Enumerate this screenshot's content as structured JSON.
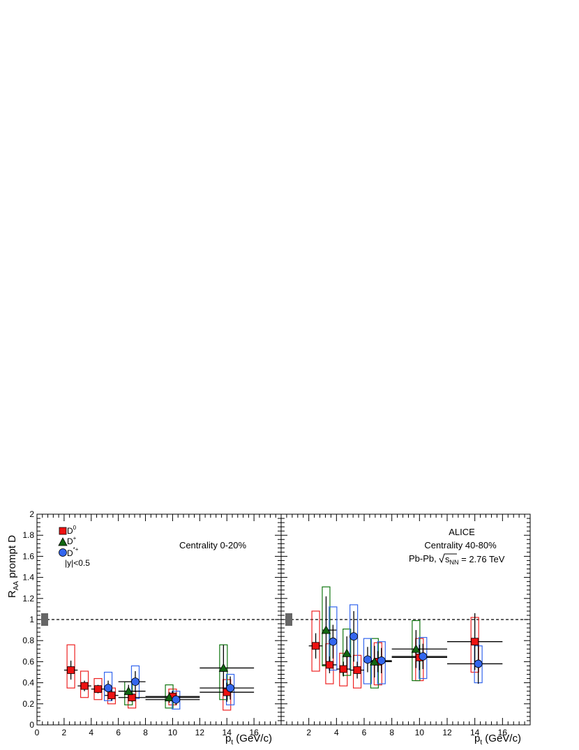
{
  "ylabel_main": "R",
  "ylabel_sub": "AA",
  "ylabel_rest": " prompt D",
  "xlabel_main": "p",
  "xlabel_sub": "t",
  "xlabel_rest": " (GeV/c)",
  "legend": {
    "d0": "D",
    "d0_sup": "0",
    "dplus": "D",
    "dplus_sup": "+",
    "dstar": "D",
    "dstar_sup": "*+",
    "rapidity": "|y|<0.5"
  },
  "left_panel": {
    "centrality": "Centrality 0-20%"
  },
  "right_panel": {
    "experiment": "ALICE",
    "centrality": "Centrality 40-80%",
    "system_pre": "Pb-Pb,",
    "system_s": "s",
    "system_sub": "NN",
    "system_post": " = 2.76 TeV"
  },
  "colors": {
    "d0": "#ee1111",
    "dplus": "#116611",
    "dstar": "#3366ee",
    "d0_box": "#ee2222",
    "dplus_box": "#117711",
    "dstar_box": "#3366ee",
    "norm_box": "#666666"
  },
  "chart_data": [
    {
      "type": "scatter",
      "title": "Centrality 0-20%",
      "xlabel": "p_t (GeV/c)",
      "ylabel": "R_AA prompt D",
      "xlim": [
        0,
        18
      ],
      "ylim": [
        0,
        2
      ],
      "x_ticks": [
        0,
        2,
        4,
        6,
        8,
        10,
        12,
        14,
        16
      ],
      "y_ticks": [
        0,
        0.2,
        0.4,
        0.6,
        0.8,
        1,
        1.2,
        1.4,
        1.6,
        1.8,
        2
      ],
      "reference_line": 1,
      "grid": false,
      "legend_position": "top-left",
      "series": [
        {
          "name": "D0",
          "marker": "square",
          "points": [
            {
              "x": 2.5,
              "y": 0.52,
              "xerr": 0.5,
              "stat": 0.09,
              "syst": [
                0.17,
                0.24
              ]
            },
            {
              "x": 3.5,
              "y": 0.37,
              "xerr": 0.5,
              "stat": 0.05,
              "syst": [
                0.11,
                0.14
              ]
            },
            {
              "x": 4.5,
              "y": 0.34,
              "xerr": 0.5,
              "stat": 0.04,
              "syst": [
                0.1,
                0.1
              ]
            },
            {
              "x": 5.5,
              "y": 0.28,
              "xerr": 0.5,
              "stat": 0.05,
              "syst": [
                0.08,
                0.07
              ]
            },
            {
              "x": 7.0,
              "y": 0.26,
              "xerr": 1.0,
              "stat": 0.04,
              "syst": [
                0.1,
                0.06
              ]
            },
            {
              "x": 10.0,
              "y": 0.27,
              "xerr": 2.0,
              "stat": 0.05,
              "syst": [
                0.08,
                0.07
              ]
            },
            {
              "x": 14.0,
              "y": 0.31,
              "xerr": 2.0,
              "stat": 0.09,
              "syst": [
                0.17,
                0.12
              ]
            }
          ]
        },
        {
          "name": "D+",
          "marker": "triangle",
          "points": [
            {
              "x": 7.0,
              "y": 0.32,
              "xerr": 1.0,
              "stat": 0.06,
              "syst": [
                0.13,
                0.09
              ]
            },
            {
              "x": 10.0,
              "y": 0.26,
              "xerr": 2.0,
              "stat": 0.05,
              "syst": [
                0.1,
                0.12
              ]
            },
            {
              "x": 14.0,
              "y": 0.54,
              "xerr": 2.0,
              "stat": 0.22,
              "syst": [
                0.3,
                0.22
              ]
            }
          ]
        },
        {
          "name": "D*+",
          "marker": "circle",
          "points": [
            {
              "x": 5.0,
              "y": 0.35,
              "xerr": 0.0,
              "stat": 0.07,
              "syst": [
                0.12,
                0.15
              ]
            },
            {
              "x": 7.0,
              "y": 0.41,
              "xerr": 1.0,
              "stat": 0.1,
              "syst": [
                0.16,
                0.15
              ]
            },
            {
              "x": 10.0,
              "y": 0.24,
              "xerr": 2.0,
              "stat": 0.05,
              "syst": [
                0.09,
                0.08
              ]
            },
            {
              "x": 14.0,
              "y": 0.35,
              "xerr": 2.0,
              "stat": 0.11,
              "syst": [
                0.16,
                0.13
              ]
            }
          ]
        }
      ]
    },
    {
      "type": "scatter",
      "title": "Centrality 40-80%",
      "xlabel": "p_t (GeV/c)",
      "ylabel": "R_AA prompt D",
      "xlim": [
        0,
        18
      ],
      "ylim": [
        0,
        2
      ],
      "x_ticks": [
        2,
        4,
        6,
        8,
        10,
        12,
        14,
        16
      ],
      "y_ticks": [
        0,
        0.2,
        0.4,
        0.6,
        0.8,
        1,
        1.2,
        1.4,
        1.6,
        1.8,
        2
      ],
      "reference_line": 1,
      "grid": false,
      "series": [
        {
          "name": "D0",
          "marker": "square",
          "points": [
            {
              "x": 2.5,
              "y": 0.75,
              "xerr": 0.5,
              "stat": 0.12,
              "syst": [
                0.24,
                0.33
              ]
            },
            {
              "x": 3.5,
              "y": 0.57,
              "xerr": 0.5,
              "stat": 0.08,
              "syst": [
                0.18,
                0.2
              ]
            },
            {
              "x": 4.5,
              "y": 0.53,
              "xerr": 0.5,
              "stat": 0.07,
              "syst": [
                0.16,
                0.15
              ]
            },
            {
              "x": 5.5,
              "y": 0.52,
              "xerr": 0.5,
              "stat": 0.08,
              "syst": [
                0.17,
                0.14
              ]
            },
            {
              "x": 7.0,
              "y": 0.6,
              "xerr": 1.0,
              "stat": 0.1,
              "syst": [
                0.22,
                0.18
              ]
            },
            {
              "x": 10.0,
              "y": 0.64,
              "xerr": 2.0,
              "stat": 0.12,
              "syst": [
                0.22,
                0.18
              ]
            },
            {
              "x": 14.0,
              "y": 0.79,
              "xerr": 2.0,
              "stat": 0.27,
              "syst": [
                0.29,
                0.23
              ]
            }
          ]
        },
        {
          "name": "D+",
          "marker": "triangle",
          "points": [
            {
              "x": 3.5,
              "y": 0.9,
              "xerr": 0.5,
              "stat": 0.32,
              "syst": [
                0.34,
                0.41
              ]
            },
            {
              "x": 5.0,
              "y": 0.68,
              "xerr": 0.0,
              "stat": 0.16,
              "syst": [
                0.21,
                0.23
              ]
            },
            {
              "x": 7.0,
              "y": 0.6,
              "xerr": 1.0,
              "stat": 0.15,
              "syst": [
                0.25,
                0.22
              ]
            },
            {
              "x": 10.0,
              "y": 0.72,
              "xerr": 2.0,
              "stat": 0.18,
              "syst": [
                0.3,
                0.27
              ]
            }
          ]
        },
        {
          "name": "D*+",
          "marker": "circle",
          "points": [
            {
              "x": 3.5,
              "y": 0.79,
              "xerr": 0.0,
              "stat": 0.16,
              "syst": [
                0.27,
                0.33
              ]
            },
            {
              "x": 5.0,
              "y": 0.84,
              "xerr": 0.0,
              "stat": 0.24,
              "syst": [
                0.32,
                0.3
              ]
            },
            {
              "x": 6.0,
              "y": 0.62,
              "xerr": 0.0,
              "stat": 0.12,
              "syst": [
                0.23,
                0.2
              ]
            },
            {
              "x": 7.0,
              "y": 0.61,
              "xerr": 1.0,
              "stat": 0.12,
              "syst": [
                0.22,
                0.18
              ]
            },
            {
              "x": 10.0,
              "y": 0.65,
              "xerr": 2.0,
              "stat": 0.12,
              "syst": [
                0.21,
                0.18
              ]
            },
            {
              "x": 14.0,
              "y": 0.58,
              "xerr": 2.0,
              "stat": 0.19,
              "syst": [
                0.18,
                0.17
              ]
            }
          ]
        }
      ]
    }
  ]
}
